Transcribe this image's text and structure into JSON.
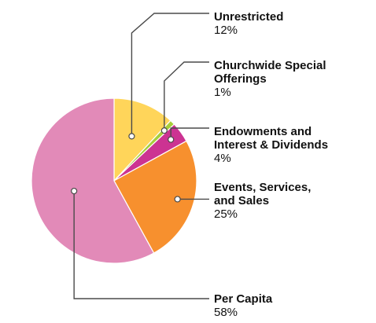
{
  "chart_data": {
    "type": "pie",
    "start_angle_deg": 0,
    "direction": "clockwise",
    "slices": [
      {
        "label_lines": [
          "Unrestricted"
        ],
        "value": 12,
        "value_label": "12%",
        "color": "#FFD55A"
      },
      {
        "label_lines": [
          "Churchwide Special",
          "Offerings"
        ],
        "value": 1,
        "value_label": "1%",
        "color": "#A7CE3A"
      },
      {
        "label_lines": [
          "Endowments and",
          "Interest & Dividends"
        ],
        "value": 4,
        "value_label": "4%",
        "color": "#CC3392"
      },
      {
        "label_lines": [
          "Events, Services,",
          "and Sales"
        ],
        "value": 25,
        "value_label": "25%",
        "color": "#F7902E"
      },
      {
        "label_lines": [
          "Per Capita"
        ],
        "value": 58,
        "value_label": "58%",
        "color": "#E28AB8"
      }
    ]
  }
}
